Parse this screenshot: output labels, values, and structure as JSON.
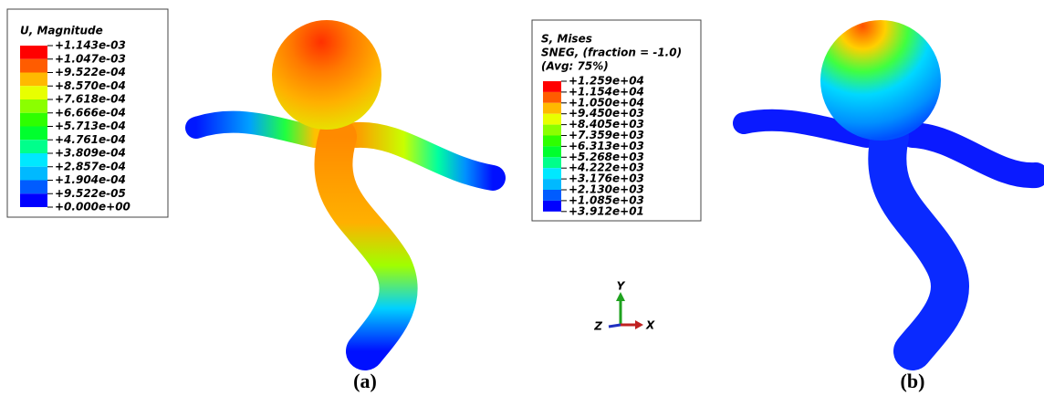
{
  "legends": [
    {
      "title_lines": [
        "U, Magnitude"
      ],
      "labels": [
        "+1.143e-03",
        "+1.047e-03",
        "+9.522e-04",
        "+8.570e-04",
        "+7.618e-04",
        "+6.666e-04",
        "+5.713e-04",
        "+4.761e-04",
        "+3.809e-04",
        "+2.857e-04",
        "+1.904e-04",
        "+9.522e-05",
        "+0.000e+00"
      ],
      "colors": [
        "#ff0000",
        "#ff5c00",
        "#ffb900",
        "#e8ff00",
        "#8bff00",
        "#2eff00",
        "#00ff2e",
        "#00ff8b",
        "#00e8ff",
        "#00b9ff",
        "#005cff",
        "#0000ff"
      ]
    },
    {
      "title_lines": [
        "S, Mises",
        "SNEG, (fraction = -1.0)",
        "(Avg: 75%)"
      ],
      "labels": [
        "+1.259e+04",
        "+1.154e+04",
        "+1.050e+04",
        "+9.450e+03",
        "+8.405e+03",
        "+7.359e+03",
        "+6.313e+03",
        "+5.268e+03",
        "+4.222e+03",
        "+3.176e+03",
        "+2.130e+03",
        "+1.085e+03",
        "+3.912e+01"
      ],
      "colors": [
        "#ff0000",
        "#ff5c00",
        "#ffb900",
        "#e8ff00",
        "#8bff00",
        "#2eff00",
        "#00ff2e",
        "#00ff8b",
        "#00e8ff",
        "#00b9ff",
        "#005cff",
        "#0000ff"
      ]
    }
  ],
  "captions": [
    "(a)",
    "(b)"
  ],
  "triad": {
    "y": "Y",
    "z": "Z",
    "x": "X"
  }
}
